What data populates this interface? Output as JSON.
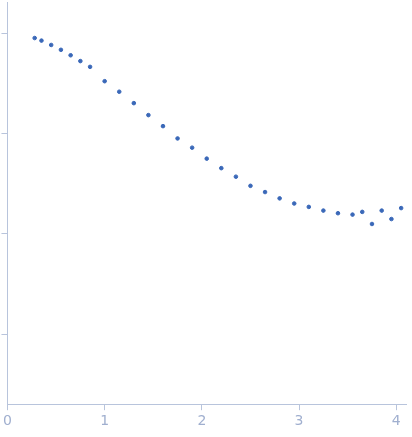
{
  "chart_data": {
    "type": "scatter",
    "log": "y",
    "grid": false,
    "tick_labels": "x",
    "color": "#3a68b8",
    "marker": "circle",
    "x": [
      0.28,
      0.35,
      0.45,
      0.55,
      0.65,
      0.75,
      0.85,
      1.0,
      1.15,
      1.3,
      1.45,
      1.6,
      1.75,
      1.9,
      2.05,
      2.2,
      2.35,
      2.5,
      2.65,
      2.8,
      2.95,
      3.1,
      3.25,
      3.4,
      3.55,
      3.65,
      3.75,
      3.85,
      3.95,
      4.05
    ],
    "values": [
      891,
      840,
      760,
      680,
      600,
      525,
      460,
      331,
      260,
      200,
      152,
      118,
      89,
      72,
      56,
      45,
      37,
      30,
      26,
      22.5,
      20,
      18.5,
      17,
      16,
      15.5,
      16.5,
      12.5,
      17,
      14,
      18
    ],
    "xlim": [
      0,
      4.1
    ],
    "xticks": [
      0,
      1,
      2,
      3,
      4
    ],
    "ylim": [
      0.2,
      2000
    ],
    "yticks": [
      1,
      10,
      100,
      1000
    ]
  }
}
